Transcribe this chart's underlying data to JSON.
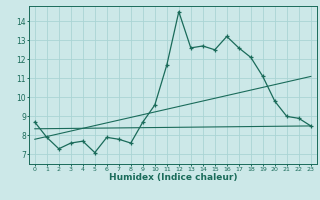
{
  "title": "",
  "xlabel": "Humidex (Indice chaleur)",
  "bg_color": "#cce8e8",
  "line_color": "#1a6b5a",
  "grid_color": "#aad4d4",
  "spine_color": "#1a6b5a",
  "xlim": [
    -0.5,
    23.5
  ],
  "ylim": [
    6.5,
    14.8
  ],
  "xticks": [
    0,
    1,
    2,
    3,
    4,
    5,
    6,
    7,
    8,
    9,
    10,
    11,
    12,
    13,
    14,
    15,
    16,
    17,
    18,
    19,
    20,
    21,
    22,
    23
  ],
  "yticks": [
    7,
    8,
    9,
    10,
    11,
    12,
    13,
    14
  ],
  "series1_x": [
    0,
    1,
    2,
    3,
    4,
    5,
    6,
    7,
    8,
    9,
    10,
    11,
    12,
    13,
    14,
    15,
    16,
    17,
    18,
    19,
    20,
    21,
    22,
    23
  ],
  "series1_y": [
    8.7,
    7.9,
    7.3,
    7.6,
    7.7,
    7.1,
    7.9,
    7.8,
    7.6,
    8.7,
    9.6,
    11.7,
    14.5,
    12.6,
    12.7,
    12.5,
    13.2,
    12.6,
    12.1,
    11.1,
    9.8,
    9.0,
    8.9,
    8.5
  ],
  "series2_x": [
    0,
    23
  ],
  "series2_y": [
    8.35,
    8.5
  ],
  "series3_x": [
    0,
    23
  ],
  "series3_y": [
    7.8,
    11.1
  ]
}
